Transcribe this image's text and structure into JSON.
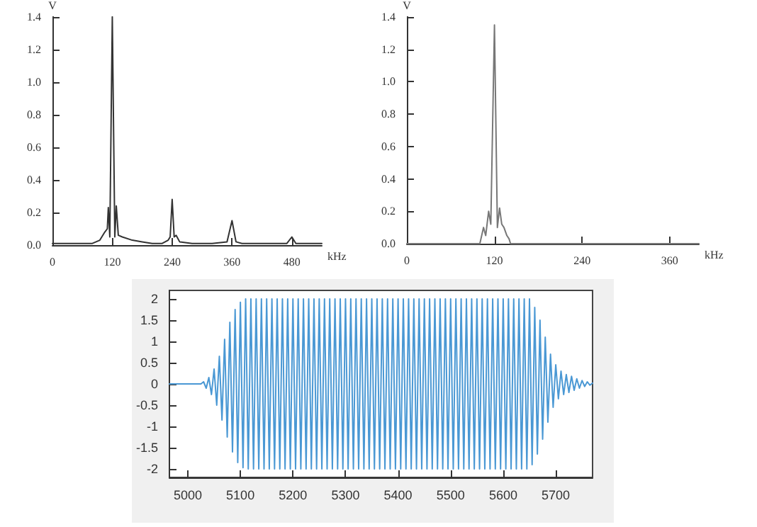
{
  "chart_data": [
    {
      "type": "line",
      "xlabel": "kHz",
      "ylabel": "V",
      "color": "#333333",
      "grid": false,
      "xlim": [
        0,
        540
      ],
      "xticks": [
        0,
        120,
        240,
        360,
        480
      ],
      "ylim": [
        0,
        1.4
      ],
      "yticks": [
        {
          "value": 0,
          "label": "0.0"
        },
        {
          "value": 0.2,
          "label": "0.2"
        },
        {
          "value": 0.4,
          "label": "0.4"
        },
        {
          "value": 0.6,
          "label": "0.6"
        },
        {
          "value": 0.8,
          "label": "0.8"
        },
        {
          "value": 1,
          "label": "1.0"
        },
        {
          "value": 1.2,
          "label": "1.2"
        },
        {
          "value": 1.4,
          "label": "1.4"
        }
      ],
      "x": [
        0,
        20,
        40,
        60,
        80,
        95,
        105,
        110,
        112,
        115,
        120,
        125,
        128,
        132,
        140,
        160,
        180,
        200,
        220,
        232,
        236,
        240,
        244,
        248,
        255,
        280,
        320,
        350,
        360,
        368,
        380,
        420,
        470,
        480,
        488,
        520,
        540
      ],
      "values": [
        0.01,
        0.01,
        0.01,
        0.01,
        0.01,
        0.03,
        0.08,
        0.1,
        0.23,
        0.05,
        1.4,
        0.05,
        0.24,
        0.06,
        0.05,
        0.03,
        0.02,
        0.01,
        0.01,
        0.03,
        0.05,
        0.28,
        0.05,
        0.06,
        0.02,
        0.01,
        0.01,
        0.02,
        0.15,
        0.02,
        0.01,
        0.01,
        0.01,
        0.05,
        0.01,
        0.01,
        0.01
      ]
    },
    {
      "type": "line",
      "xlabel": "kHz",
      "ylabel": "V",
      "color": "#777777",
      "grid": false,
      "xlim": [
        0,
        400
      ],
      "xticks": [
        0,
        120,
        240,
        360
      ],
      "ylim": [
        0,
        1.4
      ],
      "yticks": [
        {
          "value": 0,
          "label": "0.0"
        },
        {
          "value": 0.2,
          "label": "0.2"
        },
        {
          "value": 0.4,
          "label": "0.4"
        },
        {
          "value": 0.6,
          "label": "0.6"
        },
        {
          "value": 0.8,
          "label": "0.8"
        },
        {
          "value": 1,
          "label": "1.0"
        },
        {
          "value": 1.2,
          "label": "1.2"
        },
        {
          "value": 1.4,
          "label": "1.4"
        }
      ],
      "x": [
        0,
        100,
        105,
        108,
        112,
        115,
        120,
        124,
        127,
        130,
        133,
        137,
        140,
        142,
        400
      ],
      "values": [
        0,
        0,
        0.1,
        0.05,
        0.2,
        0.12,
        1.35,
        0.1,
        0.22,
        0.12,
        0.1,
        0.05,
        0.03,
        0,
        0
      ]
    },
    {
      "type": "line",
      "color": "#4a98d4",
      "grid": false,
      "xlim": [
        4965,
        5770
      ],
      "xticks": [
        5000,
        5100,
        5200,
        5300,
        5400,
        5500,
        5600,
        5700
      ],
      "ylim": [
        -2.2,
        2.2
      ],
      "yticks": [
        -2,
        -1.5,
        -1,
        -0.5,
        0,
        0.5,
        1,
        1.5,
        2
      ],
      "x": [
        4965,
        5025,
        5030,
        5035,
        5040,
        5045,
        5050,
        5055,
        5060,
        5065,
        5070,
        5075,
        5080,
        5085,
        5090,
        5095,
        5100,
        5105,
        5110,
        5115,
        5120,
        5125,
        5130,
        5135,
        5140,
        5145,
        5150,
        5155,
        5160,
        5165,
        5170,
        5175,
        5180,
        5185,
        5190,
        5195,
        5200,
        5205,
        5210,
        5215,
        5220,
        5225,
        5230,
        5235,
        5240,
        5245,
        5250,
        5255,
        5260,
        5265,
        5270,
        5275,
        5280,
        5285,
        5290,
        5295,
        5300,
        5305,
        5310,
        5315,
        5320,
        5325,
        5330,
        5335,
        5340,
        5345,
        5350,
        5355,
        5360,
        5365,
        5370,
        5375,
        5380,
        5385,
        5390,
        5395,
        5400,
        5405,
        5410,
        5415,
        5420,
        5425,
        5430,
        5435,
        5440,
        5445,
        5450,
        5455,
        5460,
        5465,
        5470,
        5475,
        5480,
        5485,
        5490,
        5495,
        5500,
        5505,
        5510,
        5515,
        5520,
        5525,
        5530,
        5535,
        5540,
        5545,
        5550,
        5555,
        5560,
        5565,
        5570,
        5575,
        5580,
        5585,
        5590,
        5595,
        5600,
        5605,
        5610,
        5615,
        5620,
        5625,
        5630,
        5635,
        5640,
        5645,
        5650,
        5655,
        5660,
        5665,
        5670,
        5675,
        5680,
        5685,
        5690,
        5695,
        5700,
        5705,
        5710,
        5715,
        5720,
        5725,
        5730,
        5735,
        5740,
        5745,
        5750,
        5755,
        5760,
        5765,
        5770
      ],
      "values": [
        0,
        0,
        0.05,
        -0.1,
        0.15,
        -0.25,
        0.35,
        -0.5,
        0.65,
        -0.85,
        1.05,
        -1.25,
        1.45,
        -1.6,
        1.75,
        -1.85,
        1.92,
        -1.97,
        2,
        -2,
        2,
        -2,
        2,
        -2,
        2,
        -2,
        2,
        -2,
        2,
        -2,
        2,
        -2,
        2,
        -2,
        2,
        -2,
        2,
        -2,
        2,
        -2,
        2,
        -2,
        2,
        -2,
        2,
        -2,
        2,
        -2,
        2,
        -2,
        2,
        -2,
        2,
        -2,
        2,
        -2,
        2,
        -2,
        2,
        -2,
        2,
        -2,
        2,
        -2,
        2,
        -2,
        2,
        -2,
        2,
        -2,
        2,
        -2,
        2,
        -2,
        2,
        -2,
        2,
        -2,
        2,
        -2,
        2,
        -2,
        2,
        -2,
        2,
        -2,
        2,
        -2,
        2,
        -2,
        2,
        -2,
        2,
        -2,
        2,
        -2,
        2,
        -2,
        2,
        -2,
        2,
        -2,
        2,
        -2,
        2,
        -2,
        2,
        -2,
        2,
        -2,
        2,
        -2,
        2,
        -2,
        2,
        -2,
        2,
        -2,
        2,
        -2,
        2,
        -2,
        2,
        -2,
        2,
        -2,
        2,
        -1.9,
        1.8,
        -1.65,
        1.5,
        -1.3,
        1.1,
        -0.9,
        0.7,
        -0.55,
        0.45,
        -0.35,
        0.3,
        -0.25,
        0.22,
        -0.2,
        0.18,
        -0.15,
        0.12,
        -0.1,
        0.08,
        -0.06,
        0.05,
        -0.03,
        0.02
      ]
    }
  ]
}
